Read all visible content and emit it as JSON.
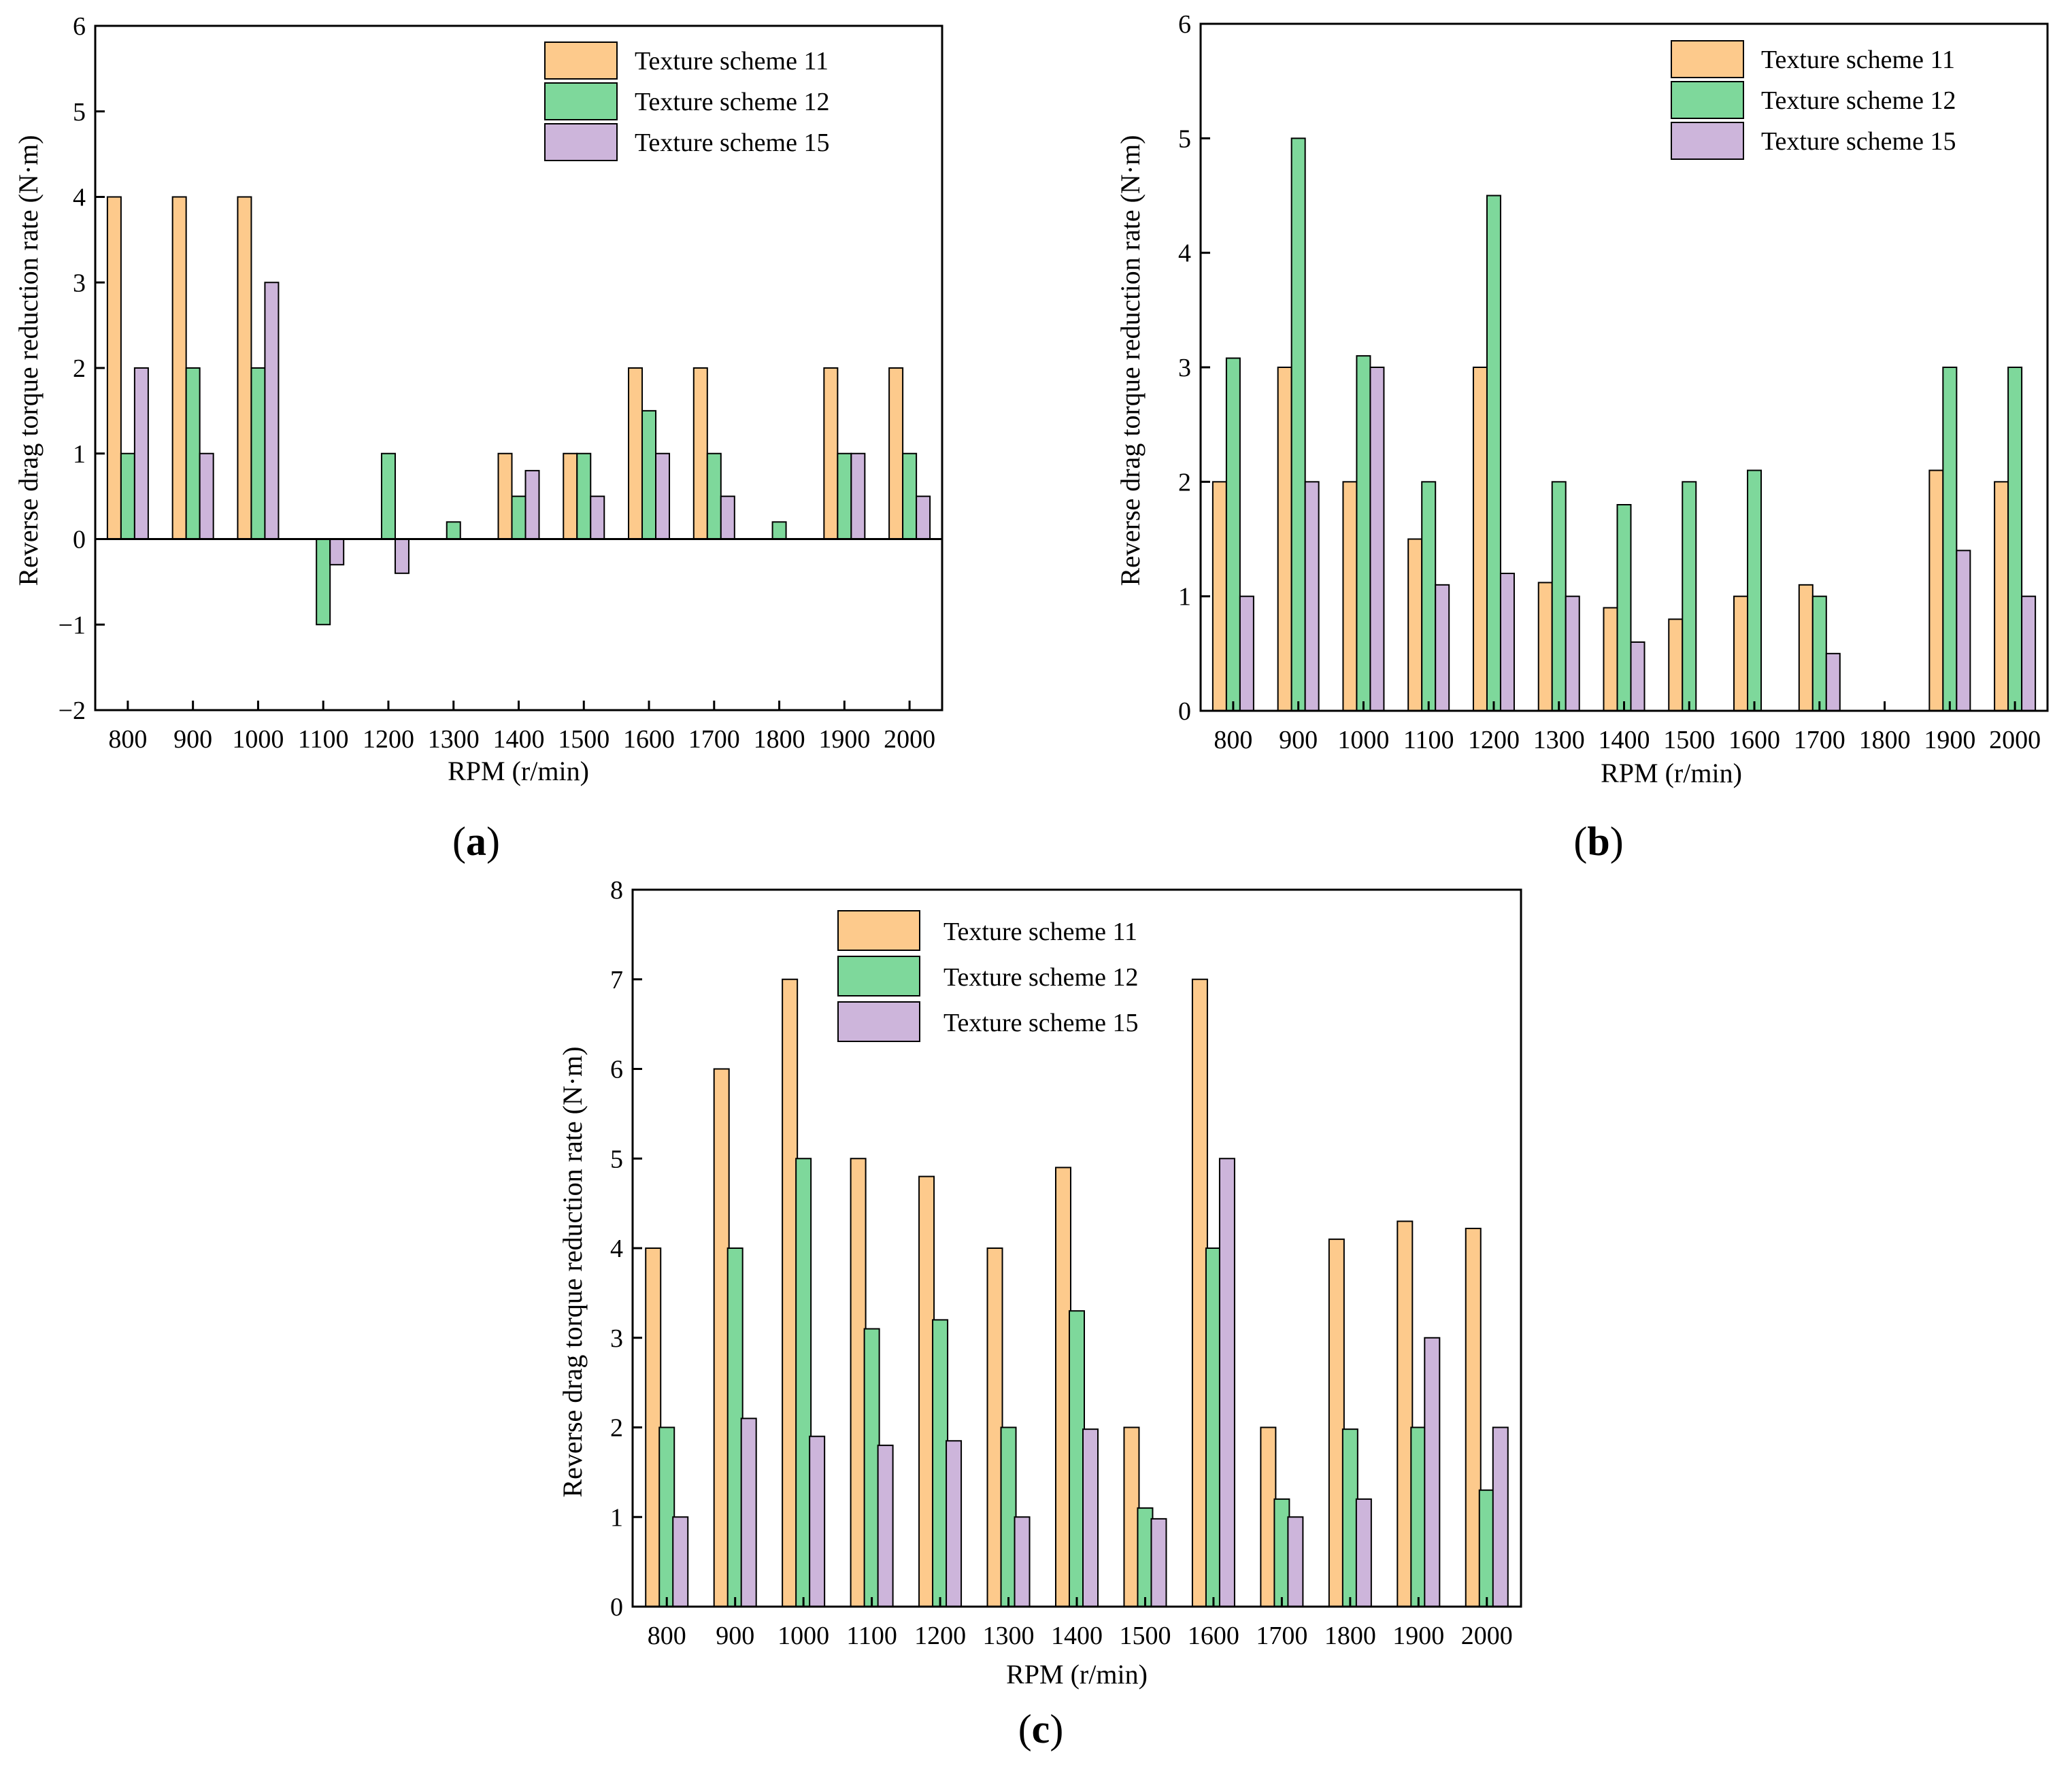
{
  "colors": {
    "scheme11": "#fdca8c",
    "scheme12": "#7ed89b",
    "scheme15": "#cdb5db",
    "axis": "#000000"
  },
  "chart_data": [
    {
      "id": "a",
      "type": "bar",
      "panel_label": "a",
      "xlabel": "RPM (r/min)",
      "ylabel": "Reverse drag torque reduction rate (N·m)",
      "ylim": [
        -2,
        6
      ],
      "yticks": [
        "−2",
        "−1",
        "0",
        "1",
        "2",
        "3",
        "4",
        "5",
        "6"
      ],
      "categories": [
        "800",
        "900",
        "1000",
        "1100",
        "1200",
        "1300",
        "1400",
        "1500",
        "1600",
        "1700",
        "1800",
        "1900",
        "2000"
      ],
      "legend_position": "top-right",
      "series": [
        {
          "name": "Texture scheme 11",
          "values": [
            4,
            4,
            4,
            0,
            0,
            0,
            1,
            1,
            2,
            2,
            0,
            2,
            2
          ]
        },
        {
          "name": "Texture scheme 12",
          "values": [
            1,
            2,
            2,
            -1,
            1,
            0.2,
            0.5,
            1,
            1.5,
            1,
            0.2,
            1,
            1
          ]
        },
        {
          "name": "Texture scheme 15",
          "values": [
            2,
            1,
            3,
            -0.3,
            -0.4,
            0,
            0.8,
            0.5,
            1,
            0.5,
            0,
            1,
            0.5
          ]
        }
      ]
    },
    {
      "id": "b",
      "type": "bar",
      "panel_label": "b",
      "xlabel": "RPM (r/min)",
      "ylabel": "Reverse drag torque reduction rate (N·m)",
      "ylim": [
        0,
        6
      ],
      "yticks": [
        "0",
        "1",
        "2",
        "3",
        "4",
        "5",
        "6"
      ],
      "categories": [
        "800",
        "900",
        "1000",
        "1100",
        "1200",
        "1300",
        "1400",
        "1500",
        "1600",
        "1700",
        "1800",
        "1900",
        "2000"
      ],
      "legend_position": "top-right",
      "series": [
        {
          "name": "Texture scheme 11",
          "values": [
            2,
            3,
            2,
            1.5,
            3,
            1.12,
            0.9,
            0.8,
            1,
            1.1,
            0,
            2.1,
            2
          ]
        },
        {
          "name": "Texture scheme 12",
          "values": [
            3.08,
            5,
            3.1,
            2,
            4.5,
            2,
            1.8,
            2,
            2.1,
            1,
            0,
            3,
            3
          ]
        },
        {
          "name": "Texture scheme 15",
          "values": [
            1,
            2,
            3,
            1.1,
            1.2,
            1,
            0.6,
            0,
            0,
            0.5,
            0,
            1.4,
            1
          ]
        }
      ]
    },
    {
      "id": "c",
      "type": "bar",
      "panel_label": "c",
      "xlabel": "RPM (r/min)",
      "ylabel": "Reverse drag torque reduction rate (N·m)",
      "ylim": [
        0,
        8
      ],
      "yticks": [
        "0",
        "1",
        "2",
        "3",
        "4",
        "5",
        "6",
        "7",
        "8"
      ],
      "categories": [
        "800",
        "900",
        "1000",
        "1100",
        "1200",
        "1300",
        "1400",
        "1500",
        "1600",
        "1700",
        "1800",
        "1900",
        "2000"
      ],
      "legend_position": "top-center",
      "series": [
        {
          "name": "Texture scheme 11",
          "values": [
            4,
            6,
            7,
            5,
            4.8,
            4,
            4.9,
            2,
            7,
            2,
            4.1,
            4.3,
            4.22
          ]
        },
        {
          "name": "Texture scheme 12",
          "values": [
            2,
            4,
            5,
            3.1,
            3.2,
            2,
            3.3,
            1.1,
            4,
            1.2,
            1.98,
            2,
            1.3
          ]
        },
        {
          "name": "Texture scheme 15",
          "values": [
            1,
            2.1,
            1.9,
            1.8,
            1.85,
            1,
            1.98,
            0.98,
            5,
            1,
            1.2,
            3,
            2
          ]
        }
      ]
    }
  ]
}
